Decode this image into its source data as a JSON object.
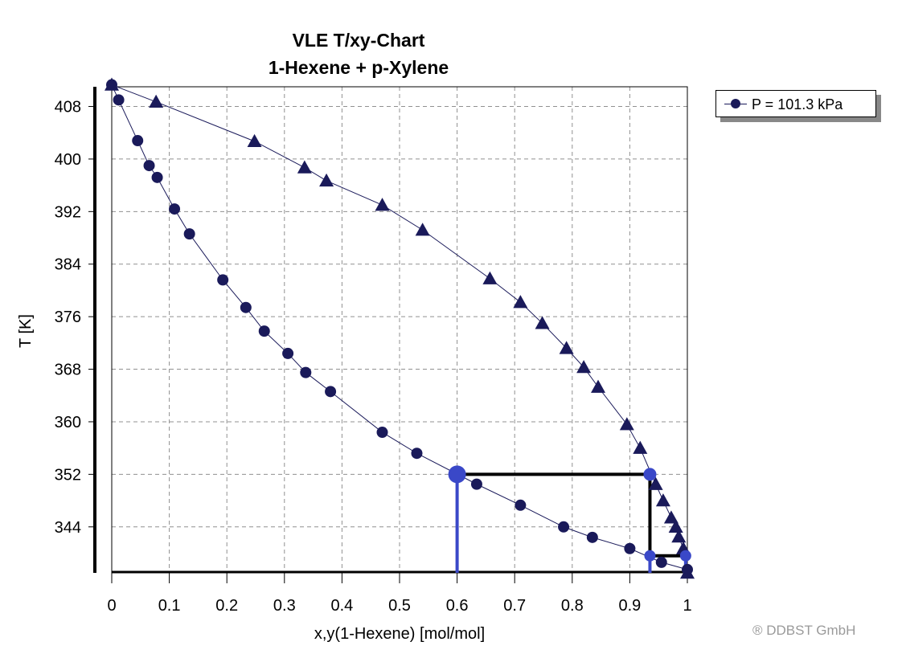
{
  "colors": {
    "point": "#1a1a5a",
    "highlight": "#3a48c8",
    "tie_line": "#000000",
    "grid": "#909090"
  },
  "legend": {
    "label": "P = 101.3 kPa"
  },
  "copyright": "® DDBST GmbH",
  "chart_data": {
    "type": "line",
    "title": "VLE T/xy-Chart",
    "subtitle": "1-Hexene + p-Xylene",
    "xlabel": "x,y(1-Hexene) [mol/mol]",
    "ylabel": "T [K]",
    "xlim": [
      0,
      1
    ],
    "ylim": [
      337,
      411
    ],
    "xticks": [
      0,
      0.1,
      0.2,
      0.3,
      0.4,
      0.5,
      0.6,
      0.7,
      0.8,
      0.9,
      1
    ],
    "xtick_labels": [
      "0",
      "0.1",
      "0.2",
      "0.3",
      "0.4",
      "0.5",
      "0.6",
      "0.7",
      "0.8",
      "0.9",
      "1"
    ],
    "yticks": [
      344,
      352,
      360,
      368,
      376,
      384,
      392,
      400,
      408
    ],
    "yticks_labels": [
      "344",
      "352",
      "360",
      "368",
      "376",
      "384",
      "392",
      "400",
      "408"
    ],
    "grid": true,
    "series": [
      {
        "marker": "circle",
        "x": [
          0.0,
          0.012,
          0.045,
          0.065,
          0.079,
          0.109,
          0.135,
          0.193,
          0.233,
          0.265,
          0.306,
          0.337,
          0.38,
          0.47,
          0.53,
          0.634,
          0.71,
          0.785,
          0.835,
          0.9,
          0.955,
          1.0
        ],
        "y": [
          411.3,
          409.0,
          402.8,
          399.0,
          397.2,
          392.4,
          388.6,
          381.6,
          377.4,
          373.8,
          370.4,
          367.5,
          364.6,
          358.4,
          355.2,
          350.5,
          347.3,
          344.0,
          342.4,
          340.7,
          338.6,
          337.5
        ]
      },
      {
        "marker": "triangle",
        "x": [
          0.0,
          0.077,
          0.248,
          0.335,
          0.373,
          0.47,
          0.54,
          0.657,
          0.71,
          0.748,
          0.79,
          0.82,
          0.845,
          0.895,
          0.918,
          0.945,
          0.958,
          0.972,
          0.98,
          0.985,
          0.993,
          1.0
        ],
        "y": [
          411.3,
          408.7,
          402.7,
          398.7,
          396.7,
          393.0,
          389.2,
          381.8,
          378.2,
          375.0,
          371.2,
          368.3,
          365.3,
          359.6,
          356.0,
          350.5,
          348.0,
          345.4,
          344.0,
          342.5,
          340.7,
          337.0
        ]
      }
    ],
    "highlight": {
      "x_liquid": 0.6,
      "y_vapor": 0.935,
      "T": 352,
      "x2": 0.935,
      "y2": 0.997,
      "T2": 339.6
    }
  }
}
